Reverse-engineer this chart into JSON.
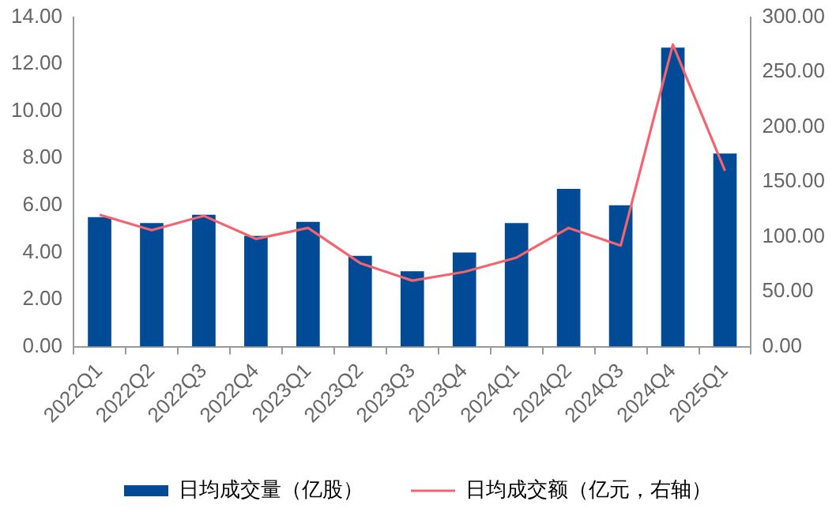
{
  "chart_data": {
    "type": "bar",
    "categories": [
      "2022Q1",
      "2022Q2",
      "2022Q3",
      "2022Q4",
      "2023Q1",
      "2023Q2",
      "2023Q3",
      "2023Q4",
      "2024Q1",
      "2024Q2",
      "2024Q3",
      "2024Q4",
      "2025Q1"
    ],
    "series": [
      {
        "name": "日均成交量（亿股）",
        "color": "#004a96",
        "values": [
          5.5,
          5.25,
          5.6,
          4.7,
          5.3,
          3.85,
          3.2,
          4.0,
          5.25,
          6.7,
          6.0,
          12.7,
          8.2
        ]
      },
      {
        "name": "日均成交额（亿元，右轴）",
        "type": "line",
        "axis": "y2",
        "color": "#f4646e",
        "values": [
          120,
          106,
          119,
          98,
          108,
          76,
          60,
          68,
          81,
          108,
          92,
          275,
          160
        ]
      }
    ],
    "ylim": [
      0,
      14
    ],
    "yticks": [
      {
        "value": 0,
        "label": "0.00"
      },
      {
        "value": 2,
        "label": "2.00"
      },
      {
        "value": 4,
        "label": "4.00"
      },
      {
        "value": 6,
        "label": "6.00"
      },
      {
        "value": 8,
        "label": "8.00"
      },
      {
        "value": 10,
        "label": "10.00"
      },
      {
        "value": 12,
        "label": "12.00"
      },
      {
        "value": 14,
        "label": "14.00"
      }
    ],
    "y2lim": [
      0,
      300
    ],
    "y2ticks": [
      {
        "value": 0,
        "label": "0.00"
      },
      {
        "value": 50,
        "label": "50.00"
      },
      {
        "value": 100,
        "label": "100.00"
      },
      {
        "value": 150,
        "label": "150.00"
      },
      {
        "value": 200,
        "label": "200.00"
      },
      {
        "value": 250,
        "label": "250.00"
      },
      {
        "value": 300,
        "label": "300.00"
      }
    ],
    "grid": false,
    "legend": "bottom",
    "marker": "none",
    "line_style": "solid"
  }
}
